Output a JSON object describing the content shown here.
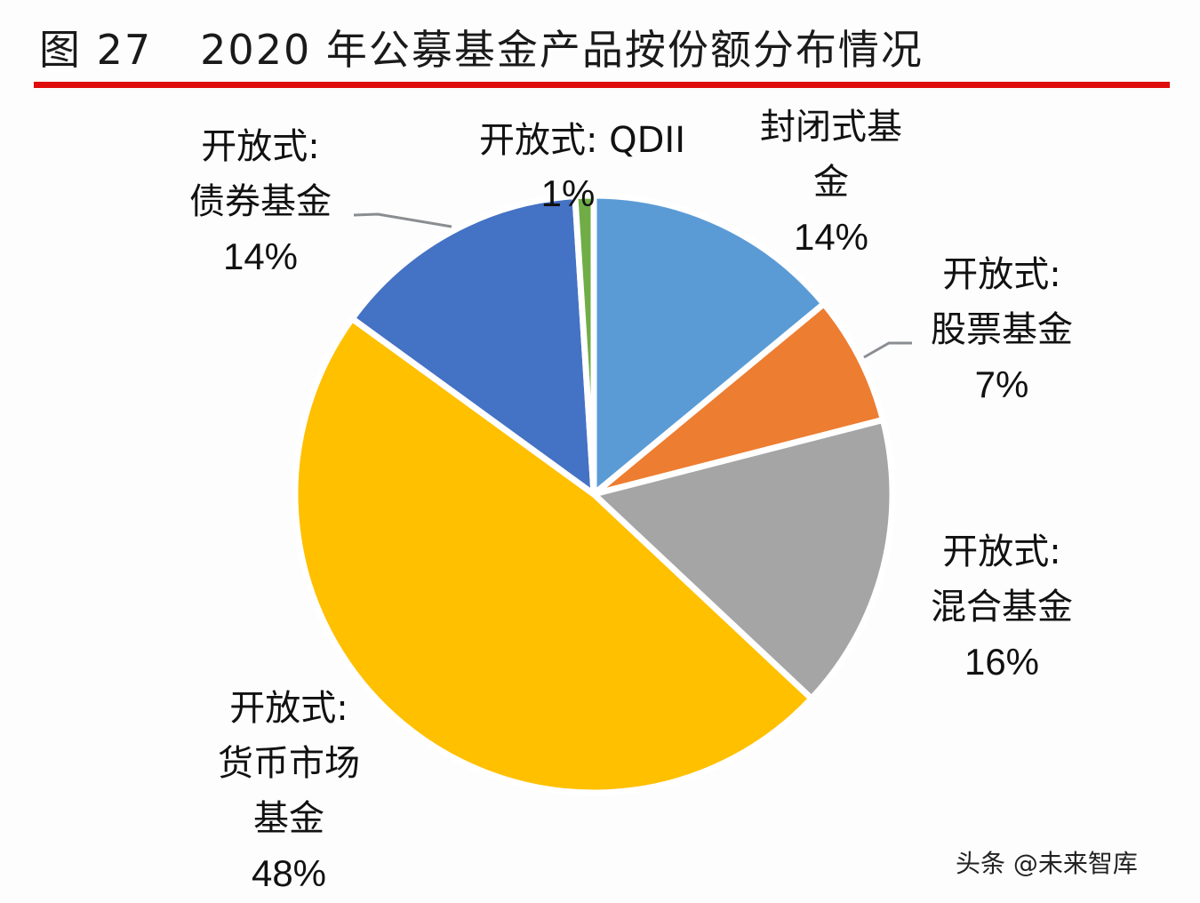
{
  "header": {
    "figure_label": "图 27",
    "title": "2020 年公募基金产品按份额分布情况"
  },
  "colors": {
    "title_rule": "#e00d0d"
  },
  "labels": {
    "closed": {
      "line1": "封闭式基",
      "line2": "金",
      "pct": "14%"
    },
    "stock": {
      "line1": "开放式:",
      "line2": "股票基金",
      "pct": "7%"
    },
    "mixed": {
      "line1": "开放式:",
      "line2": "混合基金",
      "pct": "16%"
    },
    "money": {
      "line1": "开放式:",
      "line2": "货币市场",
      "line3": "基金",
      "pct": "48%"
    },
    "bond": {
      "line1": "开放式:",
      "line2": "债券基金",
      "pct": "14%"
    },
    "qdii": {
      "line1": "开放式: QDII",
      "pct": "1%"
    }
  },
  "watermark": "头条 @未来智库",
  "chart_data": {
    "type": "pie",
    "title": "2020 年公募基金产品按份额分布情况",
    "figure_number": "图 27",
    "start_angle": "12 o'clock, clockwise",
    "categories": [
      "封闭式基金",
      "开放式: 股票基金",
      "开放式: 混合基金",
      "开放式: 货币市场基金",
      "开放式: 债券基金",
      "开放式: QDII"
    ],
    "values": [
      14,
      7,
      16,
      48,
      14,
      1
    ],
    "unit": "%",
    "colors": [
      "#5b9bd5",
      "#ed7d31",
      "#a5a5a5",
      "#ffc000",
      "#4472c4",
      "#70ad47"
    ],
    "legend": "none (data labels with leader lines)"
  }
}
